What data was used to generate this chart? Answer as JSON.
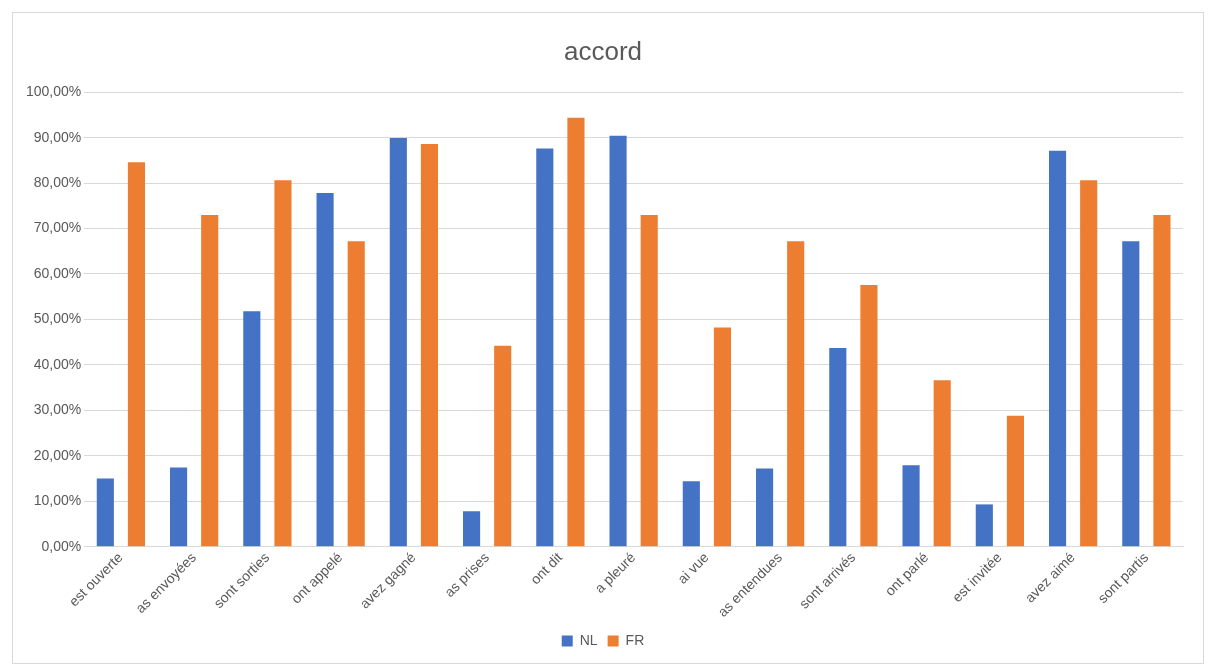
{
  "chart_data": {
    "type": "bar",
    "title": "accord",
    "categories": [
      "est ouverte",
      "as envoyées",
      "sont sorties",
      "ont appelé",
      "avez gagné",
      "as prises",
      "ont dit",
      "a pleuré",
      "ai vue",
      "as entendues",
      "sont arrivés",
      "ont parlé",
      "est invitée",
      "avez aimé",
      "sont partis"
    ],
    "series": [
      {
        "name": "NL",
        "color": "#4472c4",
        "values": [
          15,
          17.4,
          51.8,
          77.8,
          89.9,
          7.8,
          87.6,
          90.4,
          14.4,
          17.2,
          43.7,
          17.9,
          9.3,
          87.1,
          67.2
        ]
      },
      {
        "name": "FR",
        "color": "#ed7d31",
        "values": [
          84.6,
          73,
          80.6,
          67.2,
          88.6,
          44.2,
          94.4,
          73,
          48.2,
          67.2,
          57.6,
          36.6,
          28.8,
          80.6,
          73
        ]
      }
    ],
    "ylim": [
      0,
      100
    ],
    "yticks": [
      {
        "value": 0,
        "label": "0,00%"
      },
      {
        "value": 10,
        "label": "10,00%"
      },
      {
        "value": 20,
        "label": "20,00%"
      },
      {
        "value": 30,
        "label": "30,00%"
      },
      {
        "value": 40,
        "label": "40,00%"
      },
      {
        "value": 50,
        "label": "50,00%"
      },
      {
        "value": 60,
        "label": "60,00%"
      },
      {
        "value": 70,
        "label": "70,00%"
      },
      {
        "value": 80,
        "label": "80,00%"
      },
      {
        "value": 90,
        "label": "90,00%"
      },
      {
        "value": 100,
        "label": "100,00%"
      }
    ],
    "grid": "y",
    "legend": "bottom"
  }
}
